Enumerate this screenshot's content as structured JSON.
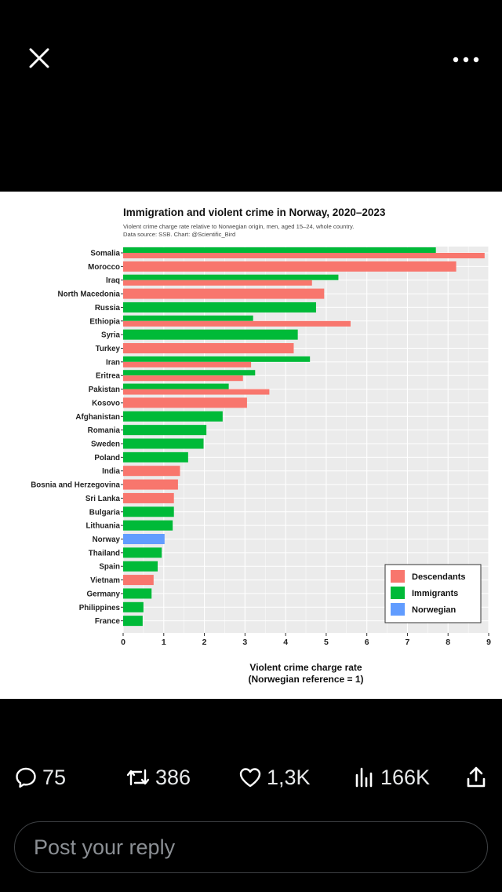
{
  "top_bar": {
    "close_icon": "close-icon",
    "more_icon": "more-horizontal-icon"
  },
  "chart_data": {
    "type": "bar",
    "orientation": "horizontal",
    "title": "Immigration and violent crime in Norway, 2020–2023",
    "subtitle": "Violent crime charge rate relative to Norwegian origin, men, aged 15–24, whole country.",
    "source": "Data source: SSB.   Chart: @Scientific_Bird",
    "xlabel": "Violent crime charge rate",
    "xlabel2": "(Norwegian reference = 1)",
    "xlim": [
      0,
      9
    ],
    "xticks": [
      "0",
      "1",
      "2",
      "3",
      "4",
      "5",
      "6",
      "7",
      "8",
      "9"
    ],
    "grid": true,
    "legend_placement": "bottom-right",
    "legend": [
      {
        "name": "Descendants",
        "color": "#f8766d"
      },
      {
        "name": "Immigrants",
        "color": "#00ba38"
      },
      {
        "name": "Norwegian",
        "color": "#619cff"
      }
    ],
    "rows": [
      {
        "country": "Somalia",
        "bars": [
          {
            "group": "Immigrants",
            "value": 7.7
          },
          {
            "group": "Descendants",
            "value": 8.9
          }
        ]
      },
      {
        "country": "Morocco",
        "bars": [
          {
            "group": "Descendants",
            "value": 8.2
          }
        ]
      },
      {
        "country": "Iraq",
        "bars": [
          {
            "group": "Immigrants",
            "value": 5.3
          },
          {
            "group": "Descendants",
            "value": 4.65
          }
        ]
      },
      {
        "country": "North Macedonia",
        "bars": [
          {
            "group": "Descendants",
            "value": 4.95
          }
        ]
      },
      {
        "country": "Russia",
        "bars": [
          {
            "group": "Immigrants",
            "value": 4.75
          }
        ]
      },
      {
        "country": "Ethiopia",
        "bars": [
          {
            "group": "Immigrants",
            "value": 3.2
          },
          {
            "group": "Descendants",
            "value": 5.6
          }
        ]
      },
      {
        "country": "Syria",
        "bars": [
          {
            "group": "Immigrants",
            "value": 4.3
          }
        ]
      },
      {
        "country": "Turkey",
        "bars": [
          {
            "group": "Descendants",
            "value": 4.2
          }
        ]
      },
      {
        "country": "Iran",
        "bars": [
          {
            "group": "Immigrants",
            "value": 4.6
          },
          {
            "group": "Descendants",
            "value": 3.15
          }
        ]
      },
      {
        "country": "Eritrea",
        "bars": [
          {
            "group": "Immigrants",
            "value": 3.25
          },
          {
            "group": "Descendants",
            "value": 2.95
          }
        ]
      },
      {
        "country": "Pakistan",
        "bars": [
          {
            "group": "Immigrants",
            "value": 2.6
          },
          {
            "group": "Descendants",
            "value": 3.6
          }
        ]
      },
      {
        "country": "Kosovo",
        "bars": [
          {
            "group": "Descendants",
            "value": 3.05
          }
        ]
      },
      {
        "country": "Afghanistan",
        "bars": [
          {
            "group": "Immigrants",
            "value": 2.45
          }
        ]
      },
      {
        "country": "Romania",
        "bars": [
          {
            "group": "Immigrants",
            "value": 2.05
          }
        ]
      },
      {
        "country": "Sweden",
        "bars": [
          {
            "group": "Immigrants",
            "value": 1.98
          }
        ]
      },
      {
        "country": "Poland",
        "bars": [
          {
            "group": "Immigrants",
            "value": 1.6
          }
        ]
      },
      {
        "country": "India",
        "bars": [
          {
            "group": "Descendants",
            "value": 1.4
          }
        ]
      },
      {
        "country": "Bosnia and Herzegovina",
        "bars": [
          {
            "group": "Descendants",
            "value": 1.35
          }
        ]
      },
      {
        "country": "Sri Lanka",
        "bars": [
          {
            "group": "Descendants",
            "value": 1.25
          }
        ]
      },
      {
        "country": "Bulgaria",
        "bars": [
          {
            "group": "Immigrants",
            "value": 1.25
          }
        ]
      },
      {
        "country": "Lithuania",
        "bars": [
          {
            "group": "Immigrants",
            "value": 1.22
          }
        ]
      },
      {
        "country": "Norway",
        "bars": [
          {
            "group": "Norwegian",
            "value": 1.02
          }
        ]
      },
      {
        "country": "Thailand",
        "bars": [
          {
            "group": "Immigrants",
            "value": 0.95
          }
        ]
      },
      {
        "country": "Spain",
        "bars": [
          {
            "group": "Immigrants",
            "value": 0.85
          }
        ]
      },
      {
        "country": "Vietnam",
        "bars": [
          {
            "group": "Descendants",
            "value": 0.75
          }
        ]
      },
      {
        "country": "Germany",
        "bars": [
          {
            "group": "Immigrants",
            "value": 0.7
          }
        ]
      },
      {
        "country": "Philippines",
        "bars": [
          {
            "group": "Immigrants",
            "value": 0.5
          }
        ]
      },
      {
        "country": "France",
        "bars": [
          {
            "group": "Immigrants",
            "value": 0.48
          }
        ]
      }
    ]
  },
  "actions": {
    "replies": {
      "icon": "reply-icon",
      "count": "75"
    },
    "reposts": {
      "icon": "repost-icon",
      "count": "386"
    },
    "likes": {
      "icon": "heart-icon",
      "count": "1,3K"
    },
    "views": {
      "icon": "views-icon",
      "count": "166K"
    },
    "share": {
      "icon": "share-icon"
    }
  },
  "reply_box": {
    "placeholder": "Post your reply"
  }
}
